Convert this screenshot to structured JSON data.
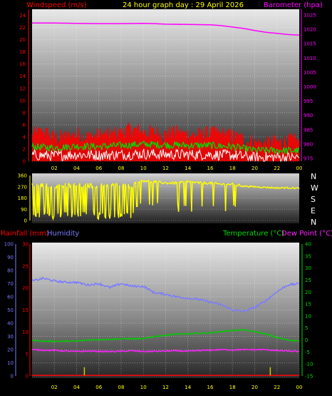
{
  "header": {
    "wind_label": "Windspeed (m/s)",
    "title": "24 hour graph day : 29 April 2026",
    "baro_label": "Barometer (hpa)"
  },
  "lower_header": {
    "rain_label": "Rainfall (mm)",
    "humidity_label": "Humidity",
    "temp_label": "Temperature (°C)",
    "dew_label": "Dew Point (°C)"
  },
  "compass": [
    "N",
    "W",
    "S",
    "E",
    "N"
  ],
  "colors": {
    "wind": "#ff0000",
    "gust": "#00dd00",
    "wind_avg": "#ffffff",
    "baro": "#ff00ff",
    "direction": "#ffff00",
    "humidity": "#7b7bff",
    "temperature": "#00cc00",
    "dewpoint": "#ff22ff",
    "rainfall": "#ff0000"
  },
  "chart_data": [
    {
      "type": "line",
      "title": "24 hour graph day : 29 April 2026",
      "x_ticks": [
        "02",
        "04",
        "06",
        "08",
        "10",
        "12",
        "14",
        "16",
        "18",
        "20",
        "22",
        "00"
      ],
      "y_left_label": "Windspeed (m/s)",
      "y_left_ticks": [
        "0",
        "2",
        "4",
        "6",
        "8",
        "10",
        "12",
        "14",
        "16",
        "18",
        "20",
        "22",
        "24"
      ],
      "y_left_range": [
        0,
        25
      ],
      "y_right_label": "Barometer (hpa)",
      "y_right_ticks": [
        "975",
        "980",
        "985",
        "990",
        "995",
        "1000",
        "1005",
        "1010",
        "1015",
        "1020",
        "1025"
      ],
      "y_right_range": [
        974,
        1027
      ],
      "series": [
        {
          "name": "Barometer (hpa)",
          "axis": "right",
          "points": [
            [
              0,
              1022.2
            ],
            [
              2,
              1022.2
            ],
            [
              4,
              1022.1
            ],
            [
              6,
              1022.0
            ],
            [
              8,
              1022.0
            ],
            [
              10,
              1022.1
            ],
            [
              11,
              1022.0
            ],
            [
              12,
              1021.8
            ],
            [
              14,
              1021.7
            ],
            [
              16,
              1021.6
            ],
            [
              17,
              1021.3
            ],
            [
              18,
              1020.8
            ],
            [
              19,
              1020.3
            ],
            [
              20,
              1019.6
            ],
            [
              21,
              1019.0
            ],
            [
              22,
              1018.6
            ],
            [
              23,
              1018.2
            ],
            [
              24,
              1018.0
            ]
          ]
        },
        {
          "name": "wind",
          "points": [
            [
              0,
              4.0
            ],
            [
              1,
              4.6
            ],
            [
              2,
              3.6
            ],
            [
              3,
              3.7
            ],
            [
              4,
              4.2
            ],
            [
              5,
              3.8
            ],
            [
              6,
              4.0
            ],
            [
              7,
              4.0
            ],
            [
              8,
              4.4
            ],
            [
              9,
              5.0
            ],
            [
              10,
              4.6
            ],
            [
              11,
              4.4
            ],
            [
              12,
              4.2
            ],
            [
              13,
              4.4
            ],
            [
              14,
              4.2
            ],
            [
              15,
              4.0
            ],
            [
              16,
              4.3
            ],
            [
              17,
              4.2
            ],
            [
              18,
              3.9
            ],
            [
              19,
              3.4
            ],
            [
              20,
              2.8
            ],
            [
              21,
              2.6
            ],
            [
              22,
              2.9
            ],
            [
              23,
              3.1
            ],
            [
              24,
              2.9
            ]
          ]
        },
        {
          "name": "gust",
          "points": [
            [
              0,
              2.4
            ],
            [
              2,
              2.2
            ],
            [
              4,
              2.5
            ],
            [
              6,
              2.4
            ],
            [
              8,
              2.6
            ],
            [
              10,
              2.8
            ],
            [
              12,
              2.7
            ],
            [
              14,
              2.6
            ],
            [
              16,
              2.6
            ],
            [
              18,
              2.4
            ],
            [
              20,
              1.8
            ],
            [
              22,
              1.8
            ],
            [
              24,
              1.7
            ]
          ]
        },
        {
          "name": "wind average",
          "points": [
            [
              0,
              1.0
            ],
            [
              2,
              0.9
            ],
            [
              4,
              1.1
            ],
            [
              6,
              1.0
            ],
            [
              8,
              1.1
            ],
            [
              10,
              1.2
            ],
            [
              12,
              1.1
            ],
            [
              14,
              1.1
            ],
            [
              16,
              1.1
            ],
            [
              18,
              1.0
            ],
            [
              20,
              0.6
            ],
            [
              22,
              0.7
            ],
            [
              24,
              0.6
            ]
          ]
        }
      ]
    },
    {
      "type": "line",
      "y_ticks": [
        "360",
        "270",
        "180",
        "90",
        "0"
      ],
      "y_range": [
        0,
        360
      ],
      "series": [
        {
          "name": "Wind direction",
          "points": [
            [
              0,
              60
            ],
            [
              1,
              280
            ],
            [
              2,
              60
            ],
            [
              3,
              280
            ],
            [
              4,
              90
            ],
            [
              5,
              290
            ],
            [
              6,
              60
            ],
            [
              7,
              300
            ],
            [
              8,
              40
            ],
            [
              9,
              310
            ],
            [
              10,
              320
            ],
            [
              11,
              310
            ],
            [
              12,
              300
            ],
            [
              13,
              300
            ],
            [
              14,
              310
            ],
            [
              15,
              300
            ],
            [
              16,
              300
            ],
            [
              17,
              290
            ],
            [
              18,
              290
            ],
            [
              19,
              275
            ],
            [
              20,
              270
            ],
            [
              21,
              265
            ],
            [
              22,
              260
            ],
            [
              23,
              262
            ],
            [
              24,
              258
            ]
          ]
        }
      ]
    },
    {
      "type": "line",
      "y_left_label": "Rainfall (mm)",
      "y_hum_ticks": [
        "0",
        "10",
        "20",
        "30",
        "40",
        "50",
        "60",
        "70",
        "80",
        "90",
        "100"
      ],
      "y_hum_range": [
        0,
        100
      ],
      "y_rain_ticks": [
        "0",
        "5",
        "10",
        "15",
        "20",
        "25",
        "30"
      ],
      "y_rain_range": [
        0,
        30
      ],
      "y_right_label": "Temperature (°C)",
      "y_right_ticks": [
        "-15",
        "-10",
        "-5",
        "0",
        "5",
        "10",
        "15",
        "20",
        "25",
        "30",
        "35",
        "40"
      ],
      "y_right_range": [
        -15,
        40
      ],
      "x_ticks": [
        "02",
        "04",
        "06",
        "08",
        "10",
        "12",
        "14",
        "16",
        "18",
        "20",
        "22",
        "00"
      ],
      "series": [
        {
          "name": "Humidity",
          "points": [
            [
              0,
              72
            ],
            [
              1,
              74
            ],
            [
              2,
              72
            ],
            [
              3,
              71
            ],
            [
              4,
              71
            ],
            [
              5,
              69
            ],
            [
              6,
              70
            ],
            [
              7,
              67
            ],
            [
              8,
              70
            ],
            [
              9,
              68
            ],
            [
              10,
              68
            ],
            [
              11,
              63
            ],
            [
              12,
              62
            ],
            [
              13,
              60
            ],
            [
              14,
              59
            ],
            [
              15,
              58
            ],
            [
              16,
              56
            ],
            [
              17,
              54
            ],
            [
              18,
              50
            ],
            [
              19,
              49
            ],
            [
              20,
              52
            ],
            [
              21,
              57
            ],
            [
              22,
              64
            ],
            [
              23,
              69
            ],
            [
              24,
              70
            ]
          ]
        },
        {
          "name": "Temperature (°C)",
          "points": [
            [
              0,
              0.0
            ],
            [
              1,
              -0.5
            ],
            [
              2,
              -0.5
            ],
            [
              3,
              -0.5
            ],
            [
              4,
              -0.5
            ],
            [
              5,
              0.0
            ],
            [
              6,
              0.2
            ],
            [
              7,
              0.3
            ],
            [
              8,
              0.5
            ],
            [
              9,
              0.5
            ],
            [
              10,
              0.5
            ],
            [
              11,
              1.5
            ],
            [
              12,
              2.0
            ],
            [
              13,
              2.5
            ],
            [
              14,
              2.5
            ],
            [
              15,
              2.8
            ],
            [
              16,
              3.0
            ],
            [
              17,
              3.5
            ],
            [
              18,
              4.0
            ],
            [
              19,
              4.2
            ],
            [
              20,
              3.5
            ],
            [
              21,
              2.5
            ],
            [
              22,
              1.0
            ],
            [
              23,
              0.0
            ],
            [
              24,
              -0.3
            ]
          ]
        },
        {
          "name": "Dew Point (°C)",
          "points": [
            [
              0,
              -4.0
            ],
            [
              1,
              -4.2
            ],
            [
              2,
              -4.3
            ],
            [
              3,
              -4.6
            ],
            [
              4,
              -4.8
            ],
            [
              5,
              -4.6
            ],
            [
              6,
              -4.7
            ],
            [
              7,
              -4.8
            ],
            [
              8,
              -4.7
            ],
            [
              9,
              -4.5
            ],
            [
              10,
              -4.8
            ],
            [
              11,
              -4.7
            ],
            [
              12,
              -4.6
            ],
            [
              13,
              -4.5
            ],
            [
              14,
              -4.7
            ],
            [
              15,
              -4.4
            ],
            [
              16,
              -4.2
            ],
            [
              17,
              -4.0
            ],
            [
              18,
              -4.1
            ],
            [
              19,
              -4.0
            ],
            [
              20,
              -4.0
            ],
            [
              21,
              -4.0
            ],
            [
              22,
              -4.4
            ],
            [
              23,
              -4.6
            ],
            [
              24,
              -4.8
            ]
          ]
        },
        {
          "name": "Rainfall (mm)",
          "points": [
            [
              0,
              0
            ],
            [
              4.6,
              0.0
            ],
            [
              4.7,
              2.0
            ],
            [
              4.8,
              0.0
            ],
            [
              21.3,
              0.0
            ],
            [
              21.4,
              2.0
            ],
            [
              21.5,
              0.0
            ],
            [
              24,
              0
            ]
          ]
        }
      ]
    }
  ]
}
